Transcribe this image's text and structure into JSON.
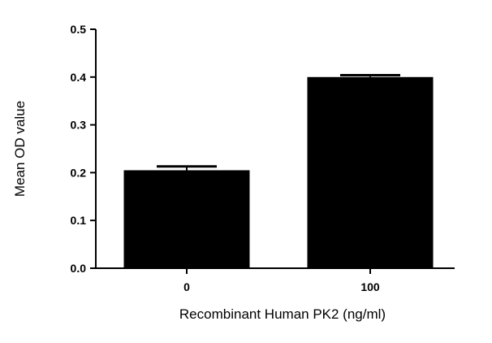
{
  "chart_data": {
    "type": "bar",
    "title": "",
    "xlabel": "Recombinant Human PK2 (ng/ml)",
    "ylabel": "Mean OD value",
    "categories": [
      "0",
      "100"
    ],
    "values": [
      0.205,
      0.4
    ],
    "error_upper": [
      0.213,
      0.404
    ],
    "ylim": [
      0,
      0.5
    ],
    "yticks": [
      "0.0",
      "0.1",
      "0.2",
      "0.3",
      "0.4",
      "0.5"
    ],
    "grid": false,
    "legend": "none",
    "bar_color": "#000000"
  }
}
